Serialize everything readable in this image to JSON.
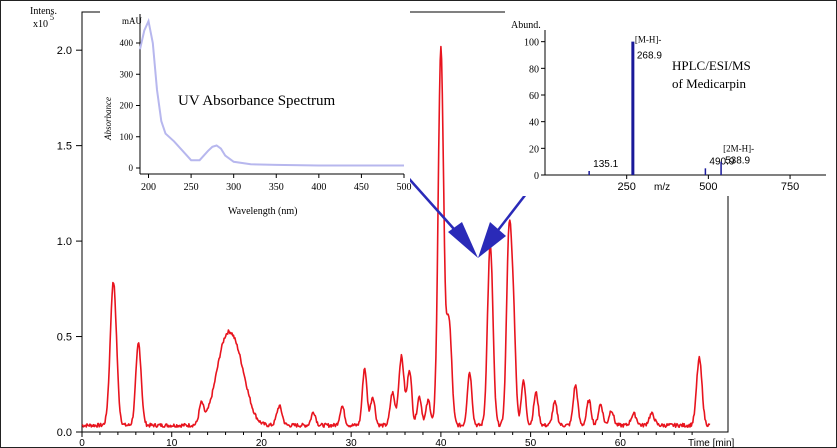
{
  "chart_data": [
    {
      "type": "line",
      "role": "main-chromatogram",
      "ylabel_lines": [
        "Intens.",
        "x10"
      ],
      "ylabel_exponent": "5",
      "xlabel": "Time [min]",
      "xlim": [
        0,
        72
      ],
      "ylim": [
        0,
        2.2
      ],
      "x_ticks": [
        0,
        10,
        20,
        30,
        40,
        50,
        60
      ],
      "x_tick_labels": [
        "0",
        "10",
        "20",
        "30",
        "40",
        "50",
        "60"
      ],
      "y_ticks": [
        0.0,
        0.5,
        1.0,
        1.5,
        2.0
      ],
      "y_tick_labels": [
        "0.0",
        "0.5",
        "1.0",
        "1.5",
        "2.0"
      ],
      "series": [
        {
          "color": "#e8141e",
          "baseline": 0.035,
          "peaks": [
            {
              "x": 3.5,
              "y": 0.75,
              "w": 0.35
            },
            {
              "x": 6.3,
              "y": 0.43,
              "w": 0.3
            },
            {
              "x": 13.3,
              "y": 0.1,
              "w": 0.25
            },
            {
              "x": 16.0,
              "y": 0.41,
              "w": 1.1
            },
            {
              "x": 17.6,
              "y": 0.22,
              "w": 1.0
            },
            {
              "x": 22.0,
              "y": 0.1,
              "w": 0.3
            },
            {
              "x": 25.8,
              "y": 0.07,
              "w": 0.25
            },
            {
              "x": 29.0,
              "y": 0.1,
              "w": 0.25
            },
            {
              "x": 31.5,
              "y": 0.3,
              "w": 0.25
            },
            {
              "x": 32.4,
              "y": 0.15,
              "w": 0.25
            },
            {
              "x": 34.6,
              "y": 0.17,
              "w": 0.25
            },
            {
              "x": 35.6,
              "y": 0.36,
              "w": 0.3
            },
            {
              "x": 36.5,
              "y": 0.29,
              "w": 0.25
            },
            {
              "x": 37.6,
              "y": 0.15,
              "w": 0.25
            },
            {
              "x": 38.6,
              "y": 0.13,
              "w": 0.25
            },
            {
              "x": 40.0,
              "y": 1.98,
              "w": 0.3
            },
            {
              "x": 40.9,
              "y": 0.55,
              "w": 0.3
            },
            {
              "x": 43.2,
              "y": 0.28,
              "w": 0.25
            },
            {
              "x": 45.5,
              "y": 0.95,
              "w": 0.3
            },
            {
              "x": 47.6,
              "y": 1.0,
              "w": 0.28
            },
            {
              "x": 48.1,
              "y": 0.5,
              "w": 0.25
            },
            {
              "x": 49.2,
              "y": 0.23,
              "w": 0.25
            },
            {
              "x": 50.6,
              "y": 0.17,
              "w": 0.25
            },
            {
              "x": 52.7,
              "y": 0.12,
              "w": 0.25
            },
            {
              "x": 55.0,
              "y": 0.21,
              "w": 0.25
            },
            {
              "x": 56.5,
              "y": 0.13,
              "w": 0.25
            },
            {
              "x": 57.8,
              "y": 0.11,
              "w": 0.25
            },
            {
              "x": 59.0,
              "y": 0.08,
              "w": 0.25
            },
            {
              "x": 61.5,
              "y": 0.06,
              "w": 0.3
            },
            {
              "x": 63.5,
              "y": 0.06,
              "w": 0.3
            },
            {
              "x": 68.8,
              "y": 0.35,
              "w": 0.3
            }
          ]
        }
      ],
      "arrow_color": "#2a2ab8"
    },
    {
      "type": "line",
      "role": "uv-inset",
      "title": "UV Absorbance Spectrum",
      "ylabel": "Absorbance",
      "yunit": "mAU",
      "xlabel": "Wavelength (nm)",
      "xlim": [
        190,
        500
      ],
      "ylim": [
        0,
        480
      ],
      "x_ticks": [
        200,
        250,
        300,
        350,
        400,
        450,
        500
      ],
      "y_ticks": [
        0,
        100,
        200,
        300,
        400
      ],
      "series": [
        {
          "color": "#b7b7ee",
          "x": [
            190,
            195,
            200,
            205,
            210,
            215,
            220,
            230,
            240,
            250,
            260,
            270,
            275,
            280,
            285,
            290,
            300,
            320,
            350,
            400,
            450,
            500
          ],
          "y": [
            380,
            440,
            470,
            400,
            250,
            150,
            110,
            85,
            55,
            25,
            25,
            55,
            68,
            72,
            62,
            40,
            20,
            12,
            10,
            8,
            8,
            8
          ]
        }
      ]
    },
    {
      "type": "bar",
      "role": "ms-inset",
      "title_lines": [
        "HPLC/ESI/MS",
        "of Medicarpin"
      ],
      "ylabel": "Abund.",
      "xlabel": "m/z",
      "xlim": [
        0,
        860
      ],
      "ylim": [
        0,
        105
      ],
      "x_ticks": [
        250,
        500,
        750
      ],
      "y_ticks": [
        0,
        20,
        40,
        60,
        80,
        100
      ],
      "color": "#1a1a9a",
      "peaks": [
        {
          "mz": 135.1,
          "abundance": 3,
          "label": "135.1"
        },
        {
          "mz": 268.9,
          "abundance": 100,
          "label": "268.9",
          "ion": "[M-H]-"
        },
        {
          "mz": 490.9,
          "abundance": 5,
          "label": "490.9"
        },
        {
          "mz": 538.9,
          "abundance": 10,
          "label": "538.9",
          "ion": "[2M-H]-"
        }
      ]
    }
  ]
}
